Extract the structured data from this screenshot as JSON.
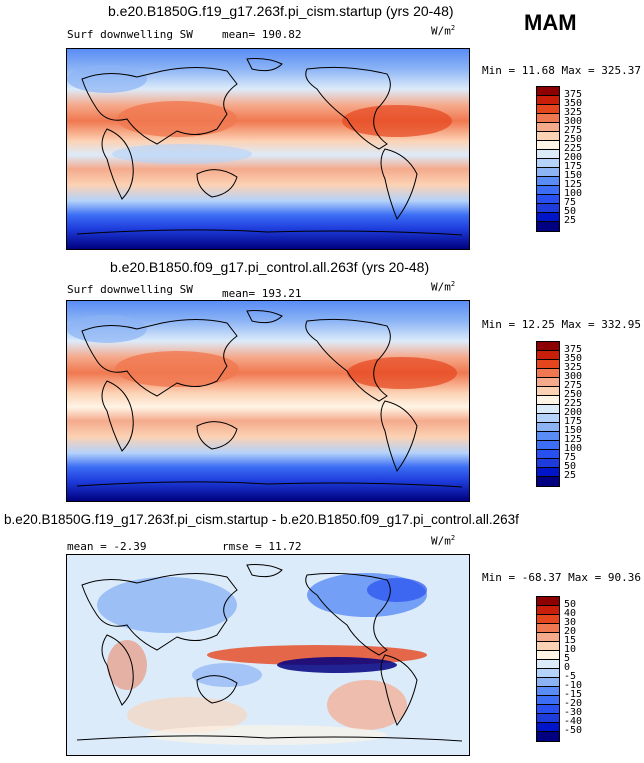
{
  "season": "MAM",
  "panels": [
    {
      "title": "b.e20.B1850G.f19_g17.263f.pi_cism.startup (yrs 20-48)",
      "field": "Surf downwelling SW",
      "stat_text": "mean= 190.82",
      "units": "W/m",
      "units_sup": "2",
      "minmax_text": "Min =  11.68 Max = 325.37"
    },
    {
      "title": "b.e20.B1850.f09_g17.pi_control.all.263f (yrs 20-48)",
      "field": "Surf downwelling SW",
      "stat_text": "mean= 193.21",
      "units": "W/m",
      "units_sup": "2",
      "minmax_text": "Min =  12.25 Max = 332.95"
    },
    {
      "title": "b.e20.B1850G.f19_g17.263f.pi_cism.startup - b.e20.B1850.f09_g17.pi_control.all.263f",
      "stat_text": "mean =  -2.39",
      "stat2_text": "rmse =  11.72",
      "units": "W/m",
      "units_sup": "2",
      "minmax_text": "Min = -68.37 Max =  90.36"
    }
  ],
  "chart_data": [
    {
      "type": "heatmap",
      "title": "b.e20.B1850G.f19_g17.263f.pi_cism.startup (yrs 20-48)",
      "variable": "Surf downwelling SW",
      "units": "W/m2",
      "mean": 190.82,
      "min": 11.68,
      "max": 325.37,
      "colorbar_levels": [
        25,
        50,
        75,
        100,
        125,
        150,
        175,
        200,
        225,
        250,
        275,
        300,
        325,
        350,
        375
      ],
      "colorbar_colors": [
        "#000080",
        "#0014c8",
        "#1e3cdc",
        "#2850f0",
        "#3c6ef5",
        "#5a8cf5",
        "#8cb4f5",
        "#b4d2fa",
        "#dcebfa",
        "#fff5e6",
        "#fcd2b4",
        "#f5aa8c",
        "#f07850",
        "#e6461e",
        "#c81e0a",
        "#8c0000"
      ],
      "zonal_profile_lat": [
        90,
        75,
        60,
        45,
        30,
        15,
        0,
        -15,
        -30,
        -45,
        -60,
        -75,
        -90
      ],
      "zonal_profile_value": [
        120,
        130,
        150,
        205,
        290,
        300,
        245,
        275,
        255,
        170,
        90,
        60,
        40
      ]
    },
    {
      "type": "heatmap",
      "title": "b.e20.B1850.f09_g17.pi_control.all.263f (yrs 20-48)",
      "variable": "Surf downwelling SW",
      "units": "W/m2",
      "mean": 193.21,
      "min": 12.25,
      "max": 332.95,
      "colorbar_levels": [
        25,
        50,
        75,
        100,
        125,
        150,
        175,
        200,
        225,
        250,
        275,
        300,
        325,
        350,
        375
      ],
      "colorbar_colors": [
        "#000080",
        "#0014c8",
        "#1e3cdc",
        "#2850f0",
        "#3c6ef5",
        "#5a8cf5",
        "#8cb4f5",
        "#b4d2fa",
        "#dcebfa",
        "#fff5e6",
        "#fcd2b4",
        "#f5aa8c",
        "#f07850",
        "#e6461e",
        "#c81e0a",
        "#8c0000"
      ],
      "zonal_profile_lat": [
        90,
        75,
        60,
        45,
        30,
        15,
        0,
        -15,
        -30,
        -45,
        -60,
        -75,
        -90
      ],
      "zonal_profile_value": [
        120,
        130,
        150,
        210,
        295,
        305,
        250,
        280,
        260,
        175,
        90,
        60,
        40
      ]
    },
    {
      "type": "heatmap",
      "title": "b.e20.B1850G.f19_g17.263f.pi_cism.startup - b.e20.B1850.f09_g17.pi_control.all.263f",
      "units": "W/m2",
      "mean": -2.39,
      "rmse": 11.72,
      "min": -68.37,
      "max": 90.36,
      "colorbar_levels": [
        -50,
        -40,
        -30,
        -20,
        -15,
        -10,
        -5,
        0,
        5,
        10,
        15,
        20,
        30,
        40,
        50
      ],
      "colorbar_colors": [
        "#000080",
        "#0014c8",
        "#1e3cdc",
        "#2850f0",
        "#3c6ef5",
        "#5a8cf5",
        "#8cb4f5",
        "#b4d2fa",
        "#dcebfa",
        "#fff5e6",
        "#fcd2b4",
        "#f5aa8c",
        "#f07850",
        "#e6461e",
        "#c81e0a",
        "#8c0000"
      ]
    }
  ]
}
